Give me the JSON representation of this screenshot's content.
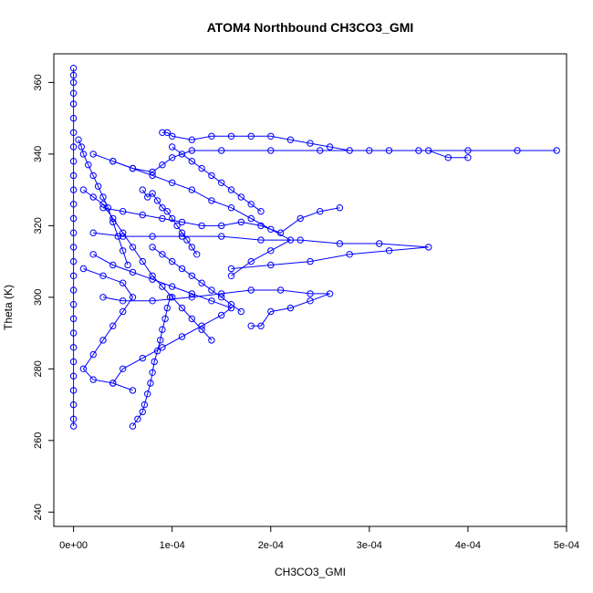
{
  "chart_data": {
    "type": "scatter",
    "title": "ATOM4 Northbound CH3CO3_GMI",
    "xlabel": "CH3CO3_GMI",
    "ylabel": "Theta (K)",
    "xlim": [
      -2e-05,
      0.0005
    ],
    "ylim": [
      236,
      368
    ],
    "x_ticks": [
      0,
      0.0001,
      0.0002,
      0.0003,
      0.0004,
      0.0005
    ],
    "x_tick_labels": [
      "0e+00",
      "1e-04",
      "2e-04",
      "3e-04",
      "4e-04",
      "5e-04"
    ],
    "y_ticks": [
      240,
      260,
      280,
      300,
      320,
      340,
      360
    ],
    "y_tick_labels": [
      "240",
      "260",
      "280",
      "300",
      "320",
      "340",
      "360"
    ],
    "grid": false,
    "legend": "none",
    "marker": "open-circle",
    "color": "#0000ff",
    "series": [
      {
        "points": [
          [
            0.0,
            364
          ],
          [
            0.0,
            362
          ],
          [
            0.0,
            360
          ],
          [
            0.0,
            357
          ],
          [
            0.0,
            354
          ],
          [
            0.0,
            350
          ],
          [
            0.0,
            346
          ],
          [
            0.0,
            342
          ],
          [
            0.0,
            338
          ],
          [
            0.0,
            334
          ],
          [
            0.0,
            330
          ],
          [
            0.0,
            326
          ],
          [
            0.0,
            322
          ],
          [
            0.0,
            318
          ],
          [
            0.0,
            314
          ],
          [
            0.0,
            310
          ],
          [
            0.0,
            306
          ],
          [
            0.0,
            302
          ],
          [
            0.0,
            298
          ],
          [
            0.0,
            294
          ],
          [
            0.0,
            290
          ],
          [
            0.0,
            286
          ],
          [
            0.0,
            282
          ],
          [
            0.0,
            278
          ],
          [
            0.0,
            274
          ],
          [
            0.0,
            270
          ],
          [
            0.0,
            266
          ],
          [
            0.0,
            264
          ]
        ]
      },
      {
        "points": [
          [
            2e-05,
            340
          ],
          [
            4e-05,
            338
          ],
          [
            6e-05,
            336
          ],
          [
            8e-05,
            335
          ],
          [
            9e-05,
            337
          ],
          [
            0.0001,
            339
          ],
          [
            0.00012,
            341
          ],
          [
            0.00015,
            341
          ],
          [
            0.0002,
            341
          ],
          [
            0.00025,
            341
          ],
          [
            0.0003,
            341
          ],
          [
            0.00035,
            341
          ],
          [
            0.0004,
            341
          ],
          [
            0.00045,
            341
          ],
          [
            0.00049,
            341
          ]
        ]
      },
      {
        "points": [
          [
            9e-05,
            346
          ],
          [
            9.5e-05,
            346
          ],
          [
            0.0001,
            345
          ],
          [
            0.00012,
            344
          ],
          [
            0.00014,
            345
          ],
          [
            0.00016,
            345
          ],
          [
            0.00018,
            345
          ],
          [
            0.0002,
            345
          ],
          [
            0.00022,
            344
          ],
          [
            0.00024,
            343
          ],
          [
            0.00026,
            342
          ],
          [
            0.00028,
            341
          ],
          [
            0.00032,
            341
          ],
          [
            0.00036,
            341
          ],
          [
            0.00038,
            339
          ],
          [
            0.0004,
            339
          ]
        ]
      },
      {
        "points": [
          [
            2e-05,
            318
          ],
          [
            5e-05,
            317
          ],
          [
            8e-05,
            317
          ],
          [
            0.00011,
            317
          ],
          [
            0.00015,
            317
          ],
          [
            0.00019,
            316
          ],
          [
            0.00023,
            316
          ],
          [
            0.00027,
            315
          ],
          [
            0.00031,
            315
          ],
          [
            0.00036,
            314
          ],
          [
            0.00032,
            313
          ],
          [
            0.00028,
            312
          ],
          [
            0.00024,
            310
          ],
          [
            0.0002,
            309
          ],
          [
            0.00016,
            308
          ]
        ]
      },
      {
        "points": [
          [
            3e-05,
            300
          ],
          [
            5e-05,
            299
          ],
          [
            8e-05,
            299
          ],
          [
            0.00012,
            300
          ],
          [
            0.00015,
            301
          ],
          [
            0.00018,
            302
          ],
          [
            0.00021,
            302
          ],
          [
            0.00024,
            301
          ],
          [
            0.00026,
            301
          ],
          [
            0.00024,
            299
          ],
          [
            0.00022,
            297
          ],
          [
            0.0002,
            296
          ],
          [
            0.00019,
            292
          ],
          [
            0.00018,
            292
          ]
        ]
      },
      {
        "points": [
          [
            6e-05,
            264
          ],
          [
            6.5e-05,
            266
          ],
          [
            7e-05,
            268
          ],
          [
            7.2e-05,
            270
          ],
          [
            7.5e-05,
            273
          ],
          [
            7.8e-05,
            276
          ],
          [
            8e-05,
            279
          ],
          [
            8.2e-05,
            282
          ],
          [
            8.5e-05,
            285
          ],
          [
            8.8e-05,
            288
          ],
          [
            9e-05,
            291
          ],
          [
            9.3e-05,
            294
          ],
          [
            9.5e-05,
            297
          ],
          [
            9.8e-05,
            300
          ]
        ]
      },
      {
        "points": [
          [
            3e-05,
            325
          ],
          [
            5e-05,
            324
          ],
          [
            7e-05,
            323
          ],
          [
            9e-05,
            322
          ],
          [
            0.00011,
            321
          ],
          [
            0.00013,
            320
          ],
          [
            0.00015,
            320
          ],
          [
            0.00017,
            321
          ],
          [
            0.00019,
            320
          ],
          [
            0.00021,
            318
          ],
          [
            0.00023,
            322
          ],
          [
            0.00025,
            324
          ],
          [
            0.00027,
            325
          ]
        ]
      },
      {
        "points": [
          [
            1e-05,
            330
          ],
          [
            2e-05,
            328
          ],
          [
            3e-05,
            326
          ],
          [
            4e-05,
            322
          ],
          [
            5e-05,
            318
          ],
          [
            6e-05,
            314
          ],
          [
            7e-05,
            310
          ],
          [
            8e-05,
            306
          ],
          [
            9e-05,
            303
          ],
          [
            0.0001,
            300
          ],
          [
            0.00011,
            297
          ],
          [
            0.00012,
            294
          ],
          [
            0.00013,
            291
          ],
          [
            0.00014,
            288
          ]
        ]
      },
      {
        "points": [
          [
            2e-05,
            312
          ],
          [
            4e-05,
            309
          ],
          [
            6e-05,
            307
          ],
          [
            8e-05,
            305
          ],
          [
            0.0001,
            303
          ],
          [
            0.00012,
            301
          ],
          [
            0.00014,
            299
          ],
          [
            0.00016,
            297
          ],
          [
            0.00015,
            295
          ],
          [
            0.00013,
            292
          ],
          [
            0.00011,
            289
          ],
          [
            9e-05,
            286
          ],
          [
            7e-05,
            283
          ],
          [
            5e-05,
            280
          ],
          [
            4e-05,
            276
          ]
        ]
      },
      {
        "points": [
          [
            1e-05,
            308
          ],
          [
            3e-05,
            306
          ],
          [
            5e-05,
            304
          ],
          [
            6e-05,
            300
          ],
          [
            5e-05,
            296
          ],
          [
            4e-05,
            292
          ],
          [
            3e-05,
            288
          ],
          [
            2e-05,
            284
          ],
          [
            1e-05,
            280
          ],
          [
            2e-05,
            277
          ],
          [
            4e-05,
            276
          ],
          [
            6e-05,
            274
          ]
        ]
      },
      {
        "points": [
          [
            4e-05,
            338
          ],
          [
            6e-05,
            336
          ],
          [
            8e-05,
            334
          ],
          [
            0.0001,
            332
          ],
          [
            0.00012,
            330
          ],
          [
            0.00014,
            327
          ],
          [
            0.00016,
            325
          ],
          [
            0.00018,
            322
          ],
          [
            0.0002,
            319
          ],
          [
            0.00022,
            316
          ],
          [
            0.0002,
            313
          ],
          [
            0.00018,
            310
          ],
          [
            0.00016,
            306
          ]
        ]
      },
      {
        "points": [
          [
            7e-05,
            330
          ],
          [
            7.5e-05,
            328
          ],
          [
            8e-05,
            329
          ],
          [
            8.5e-05,
            327
          ],
          [
            9e-05,
            325
          ],
          [
            9.5e-05,
            324
          ],
          [
            0.0001,
            322
          ],
          [
            0.000105,
            320
          ],
          [
            0.00011,
            318
          ],
          [
            0.000115,
            316
          ],
          [
            0.00012,
            314
          ],
          [
            0.000125,
            312
          ]
        ]
      },
      {
        "points": [
          [
            5e-06,
            344
          ],
          [
            8e-06,
            342
          ],
          [
            1e-05,
            340
          ],
          [
            1.5e-05,
            337
          ],
          [
            2e-05,
            334
          ],
          [
            2.5e-05,
            331
          ],
          [
            3e-05,
            328
          ],
          [
            3.5e-05,
            325
          ],
          [
            4e-05,
            321
          ],
          [
            4.5e-05,
            317
          ],
          [
            5e-05,
            313
          ],
          [
            5.5e-05,
            309
          ]
        ]
      },
      {
        "points": [
          [
            0.0001,
            342
          ],
          [
            0.00011,
            340
          ],
          [
            0.00012,
            338
          ],
          [
            0.00013,
            336
          ],
          [
            0.00014,
            334
          ],
          [
            0.00015,
            332
          ],
          [
            0.00016,
            330
          ],
          [
            0.00017,
            328
          ],
          [
            0.00018,
            326
          ],
          [
            0.00019,
            324
          ]
        ]
      },
      {
        "points": [
          [
            8e-05,
            314
          ],
          [
            9e-05,
            312
          ],
          [
            0.0001,
            310
          ],
          [
            0.00011,
            308
          ],
          [
            0.00012,
            306
          ],
          [
            0.00013,
            304
          ],
          [
            0.00014,
            302
          ],
          [
            0.00015,
            300
          ],
          [
            0.00016,
            298
          ],
          [
            0.00017,
            296
          ]
        ]
      }
    ]
  }
}
